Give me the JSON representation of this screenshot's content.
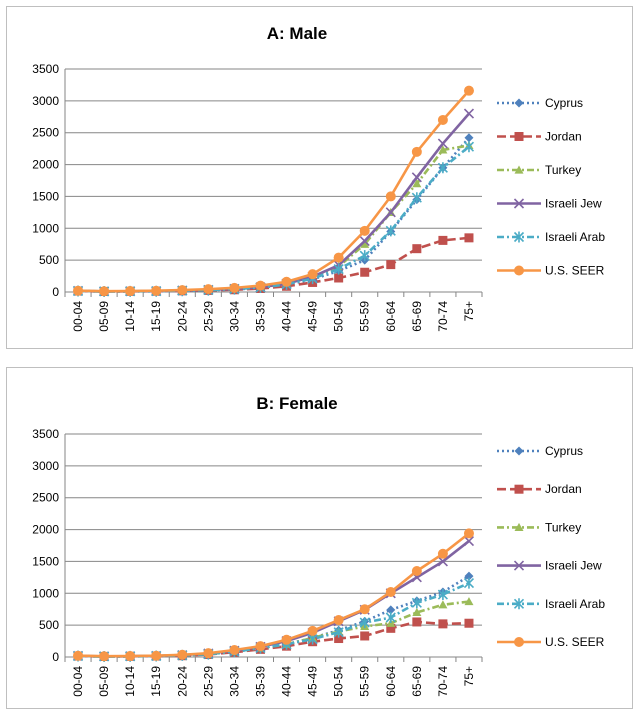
{
  "chart_data": [
    {
      "type": "line",
      "title": "A: Male",
      "categories": [
        "00-04",
        "05-09",
        "10-14",
        "15-19",
        "20-24",
        "25-29",
        "30-34",
        "35-39",
        "40-44",
        "45-49",
        "50-54",
        "55-59",
        "60-64",
        "65-69",
        "70-74",
        "75+"
      ],
      "ylim": [
        0,
        3500
      ],
      "yticks": [
        0,
        500,
        1000,
        1500,
        2000,
        2500,
        3000,
        3500
      ],
      "grid": true,
      "legend_position": "right",
      "series": [
        {
          "name": "Cyprus",
          "color": "#4f81bd",
          "marker": "diamond",
          "dash": "dotted",
          "values": [
            15,
            8,
            10,
            12,
            18,
            28,
            40,
            65,
            115,
            200,
            330,
            500,
            950,
            1450,
            1950,
            2420
          ]
        },
        {
          "name": "Jordan",
          "color": "#c0504d",
          "marker": "square",
          "dash": "dashed",
          "values": [
            15,
            8,
            10,
            12,
            18,
            25,
            35,
            55,
            90,
            150,
            220,
            310,
            430,
            680,
            810,
            850
          ]
        },
        {
          "name": "Turkey",
          "color": "#9bbb59",
          "marker": "triangle",
          "dash": "dashdot",
          "values": [
            18,
            10,
            12,
            15,
            25,
            35,
            55,
            85,
            140,
            240,
            400,
            750,
            1250,
            1700,
            2230,
            2300
          ]
        },
        {
          "name": "Israeli Jew",
          "color": "#8064a2",
          "marker": "x",
          "dash": "solid",
          "values": [
            18,
            10,
            12,
            15,
            25,
            35,
            50,
            75,
            130,
            240,
            420,
            800,
            1250,
            1800,
            2330,
            2800
          ]
        },
        {
          "name": "Israeli Arab",
          "color": "#4bacc6",
          "marker": "star",
          "dash": "dashdot",
          "values": [
            15,
            8,
            10,
            12,
            20,
            30,
            45,
            70,
            120,
            210,
            360,
            570,
            960,
            1480,
            1950,
            2280
          ]
        },
        {
          "name": "U.S. SEER",
          "color": "#f79646",
          "marker": "circle",
          "dash": "solid",
          "values": [
            20,
            12,
            15,
            20,
            30,
            45,
            65,
            100,
            160,
            280,
            540,
            960,
            1500,
            2200,
            2700,
            3160
          ]
        }
      ]
    },
    {
      "type": "line",
      "title": "B: Female",
      "categories": [
        "00-04",
        "05-09",
        "10-14",
        "15-19",
        "20-24",
        "25-29",
        "30-34",
        "35-39",
        "40-44",
        "45-49",
        "50-54",
        "55-59",
        "60-64",
        "65-69",
        "70-74",
        "75+"
      ],
      "ylim": [
        0,
        3500
      ],
      "yticks": [
        0,
        500,
        1000,
        1500,
        2000,
        2500,
        3000,
        3500
      ],
      "grid": true,
      "legend_position": "right",
      "series": [
        {
          "name": "Cyprus",
          "color": "#4f81bd",
          "marker": "diamond",
          "dash": "dotted",
          "values": [
            15,
            8,
            10,
            15,
            25,
            45,
            80,
            140,
            200,
            300,
            420,
            560,
            740,
            880,
            1020,
            1270
          ]
        },
        {
          "name": "Jordan",
          "color": "#c0504d",
          "marker": "square",
          "dash": "dashed",
          "values": [
            15,
            8,
            10,
            15,
            20,
            40,
            75,
            120,
            170,
            240,
            290,
            330,
            450,
            550,
            520,
            530
          ]
        },
        {
          "name": "Turkey",
          "color": "#9bbb59",
          "marker": "triangle",
          "dash": "dashdot",
          "values": [
            15,
            8,
            10,
            15,
            25,
            45,
            85,
            140,
            200,
            300,
            400,
            480,
            530,
            700,
            820,
            870
          ]
        },
        {
          "name": "Israeli Jew",
          "color": "#8064a2",
          "marker": "x",
          "dash": "solid",
          "values": [
            18,
            10,
            12,
            18,
            30,
            55,
            100,
            160,
            250,
            380,
            560,
            740,
            1000,
            1250,
            1500,
            1820
          ]
        },
        {
          "name": "Israeli Arab",
          "color": "#4bacc6",
          "marker": "star",
          "dash": "dashdot",
          "values": [
            15,
            8,
            10,
            15,
            25,
            45,
            85,
            140,
            200,
            280,
            390,
            540,
            620,
            850,
            980,
            1160
          ]
        },
        {
          "name": "U.S. SEER",
          "color": "#f79646",
          "marker": "circle",
          "dash": "solid",
          "values": [
            20,
            12,
            15,
            20,
            35,
            60,
            110,
            170,
            270,
            410,
            580,
            750,
            1020,
            1350,
            1620,
            1940
          ]
        }
      ]
    }
  ]
}
